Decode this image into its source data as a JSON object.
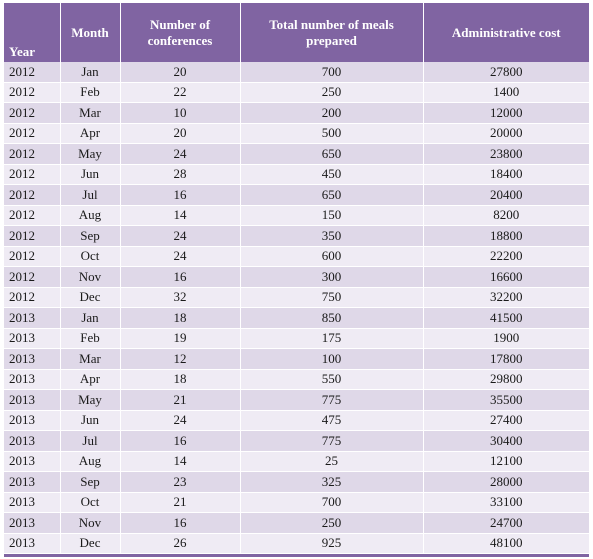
{
  "table": {
    "headers": {
      "year": "Year",
      "month": "Month",
      "conferences": "Number of conferences",
      "meals": "Total number of meals prepared",
      "cost": "Administrative cost"
    },
    "rows": [
      {
        "year": "2012",
        "month": "Jan",
        "conferences": "20",
        "meals": "700",
        "cost": "27800"
      },
      {
        "year": "2012",
        "month": "Feb",
        "conferences": "22",
        "meals": "250",
        "cost": "1400"
      },
      {
        "year": "2012",
        "month": "Mar",
        "conferences": "10",
        "meals": "200",
        "cost": "12000"
      },
      {
        "year": "2012",
        "month": "Apr",
        "conferences": "20",
        "meals": "500",
        "cost": "20000"
      },
      {
        "year": "2012",
        "month": "May",
        "conferences": "24",
        "meals": "650",
        "cost": "23800"
      },
      {
        "year": "2012",
        "month": "Jun",
        "conferences": "28",
        "meals": "450",
        "cost": "18400"
      },
      {
        "year": "2012",
        "month": "Jul",
        "conferences": "16",
        "meals": "650",
        "cost": "20400"
      },
      {
        "year": "2012",
        "month": "Aug",
        "conferences": "14",
        "meals": "150",
        "cost": "8200"
      },
      {
        "year": "2012",
        "month": "Sep",
        "conferences": "24",
        "meals": "350",
        "cost": "18800"
      },
      {
        "year": "2012",
        "month": "Oct",
        "conferences": "24",
        "meals": "600",
        "cost": "22200"
      },
      {
        "year": "2012",
        "month": "Nov",
        "conferences": "16",
        "meals": "300",
        "cost": "16600"
      },
      {
        "year": "2012",
        "month": "Dec",
        "conferences": "32",
        "meals": "750",
        "cost": "32200"
      },
      {
        "year": "2013",
        "month": "Jan",
        "conferences": "18",
        "meals": "850",
        "cost": "41500"
      },
      {
        "year": "2013",
        "month": "Feb",
        "conferences": "19",
        "meals": "175",
        "cost": "1900"
      },
      {
        "year": "2013",
        "month": "Mar",
        "conferences": "12",
        "meals": "100",
        "cost": "17800"
      },
      {
        "year": "2013",
        "month": "Apr",
        "conferences": "18",
        "meals": "550",
        "cost": "29800"
      },
      {
        "year": "2013",
        "month": "May",
        "conferences": "21",
        "meals": "775",
        "cost": "35500"
      },
      {
        "year": "2013",
        "month": "Jun",
        "conferences": "24",
        "meals": "475",
        "cost": "27400"
      },
      {
        "year": "2013",
        "month": "Jul",
        "conferences": "16",
        "meals": "775",
        "cost": "30400"
      },
      {
        "year": "2013",
        "month": "Aug",
        "conferences": "14",
        "meals": "25",
        "cost": "12100"
      },
      {
        "year": "2013",
        "month": "Sep",
        "conferences": "23",
        "meals": "325",
        "cost": "28000"
      },
      {
        "year": "2013",
        "month": "Oct",
        "conferences": "21",
        "meals": "700",
        "cost": "33100"
      },
      {
        "year": "2013",
        "month": "Nov",
        "conferences": "16",
        "meals": "250",
        "cost": "24700"
      },
      {
        "year": "2013",
        "month": "Dec",
        "conferences": "26",
        "meals": "925",
        "cost": "48100"
      }
    ]
  },
  "colors": {
    "header_bg": "#8064a2",
    "row_odd": "#dfd8e8",
    "row_even": "#efebf4"
  }
}
